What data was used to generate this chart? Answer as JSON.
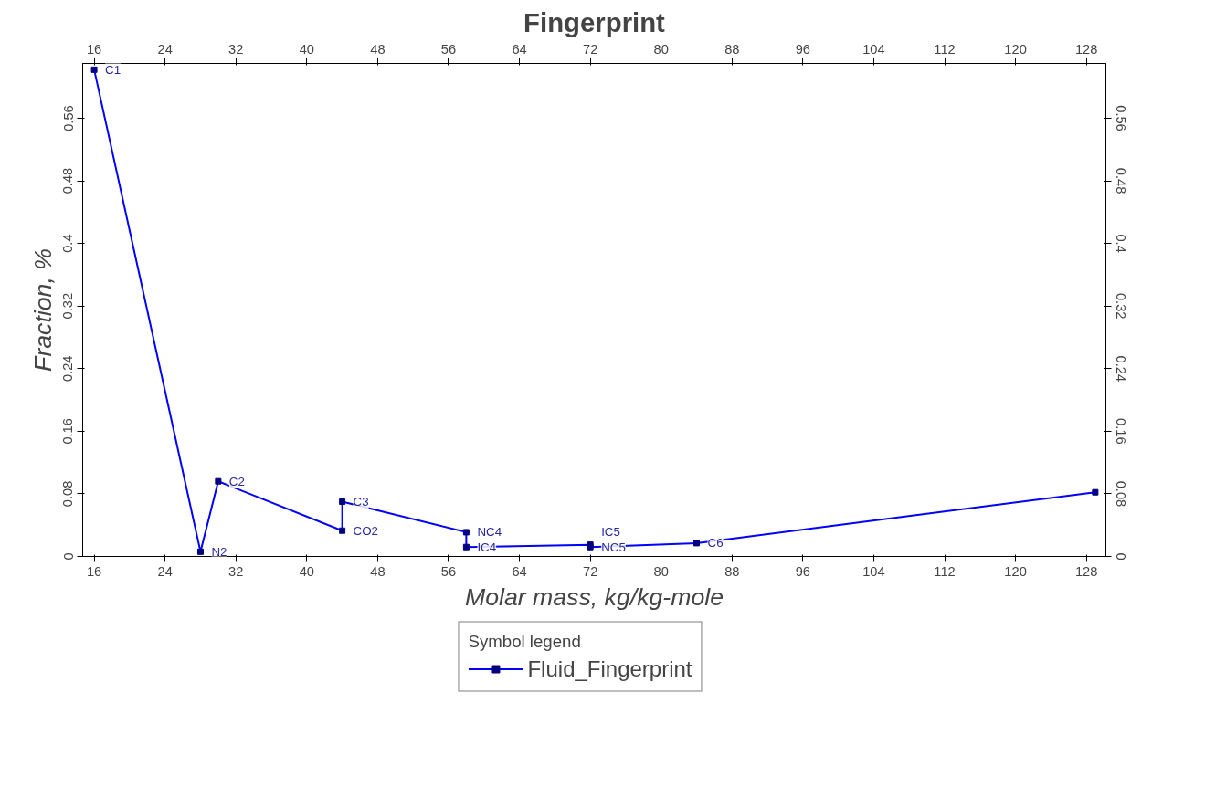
{
  "chart_data": {
    "type": "line",
    "title": "Fingerprint",
    "xlabel": "Molar mass, kg/kg-mole",
    "ylabel": "Fraction, %",
    "x": [
      16,
      28,
      30,
      44,
      44,
      58,
      58,
      72,
      72,
      84,
      129
    ],
    "series": [
      {
        "name": "Fluid_Fingerprint",
        "color": "#0000ff",
        "values": [
          0.622,
          0.006,
          0.096,
          0.033,
          0.07,
          0.031,
          0.012,
          0.015,
          0.012,
          0.017,
          0.082
        ]
      }
    ],
    "annotations": [
      {
        "text": "C1",
        "x": 16,
        "y": 0.622
      },
      {
        "text": "N2",
        "x": 28,
        "y": 0.006
      },
      {
        "text": "C2",
        "x": 30,
        "y": 0.096
      },
      {
        "text": "CO2",
        "x": 44,
        "y": 0.033
      },
      {
        "text": "C3",
        "x": 44,
        "y": 0.07
      },
      {
        "text": "NC4",
        "x": 58,
        "y": 0.031
      },
      {
        "text": "IC4",
        "x": 58,
        "y": 0.012
      },
      {
        "text": "IC5",
        "x": 72,
        "y": 0.015
      },
      {
        "text": "NC5",
        "x": 72,
        "y": 0.012
      },
      {
        "text": "C6",
        "x": 84,
        "y": 0.017
      }
    ],
    "xlim": [
      14.7,
      130.2
    ],
    "xticks": [
      16,
      24,
      32,
      40,
      48,
      56,
      64,
      72,
      80,
      88,
      96,
      104,
      112,
      120,
      128
    ],
    "x2lim": [
      14.7,
      130.2
    ],
    "x2ticks": [
      16,
      24,
      32,
      40,
      48,
      56,
      64,
      72,
      80,
      88,
      96,
      104,
      112,
      120,
      128
    ],
    "ylim": [
      0,
      0.63
    ],
    "yticks": [
      0,
      0.08,
      0.16,
      0.24,
      0.32,
      0.4,
      0.48,
      0.56
    ],
    "y2lim": [
      0,
      0.63
    ],
    "y2ticks": [
      0,
      0.08,
      0.16,
      0.24,
      0.32,
      0.4,
      0.48,
      0.56
    ],
    "legend": "bottom",
    "legend_title": "Symbol legend",
    "grid": false,
    "marker": "square",
    "line_style": "solid"
  }
}
